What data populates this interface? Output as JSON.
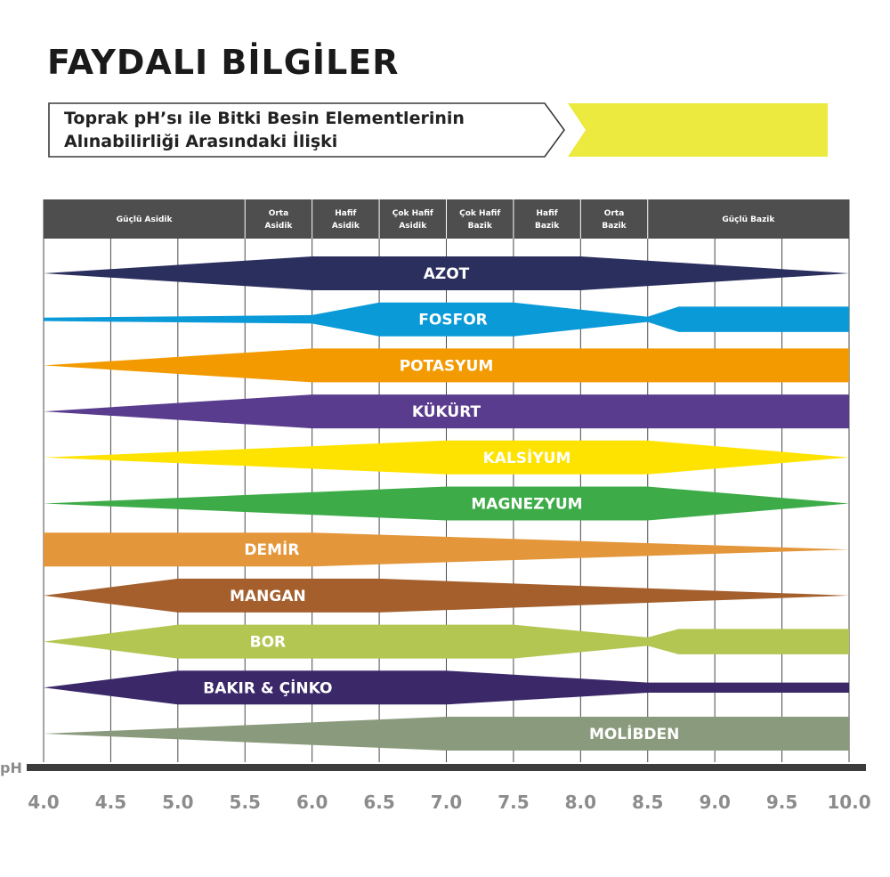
{
  "header": {
    "title": "FAYDALI BİLGİLER",
    "subtitle_line1": "Toprak pH’sı ile Bitki Besin Elementlerinin",
    "subtitle_line2": "Alınabilirliği Arasındaki İlişki",
    "accent_color": "#ecea3f"
  },
  "chart_data": {
    "type": "area",
    "title": "Toprak pH’sı ile Bitki Besin Elementlerinin Alınabilirliği Arasındaki İlişki",
    "xlabel": "pH",
    "xlim": [
      4.0,
      10.0
    ],
    "xticks": [
      4.0,
      4.5,
      5.0,
      5.5,
      6.0,
      6.5,
      7.0,
      7.5,
      8.0,
      8.5,
      9.0,
      9.5,
      10.0
    ],
    "xtick_labels": [
      "4.0",
      "4.5",
      "5.0",
      "5.5",
      "6.0",
      "6.5",
      "7.0",
      "7.5",
      "8.0",
      "8.5",
      "9.0",
      "9.5",
      "10.0"
    ],
    "value_scale": "relative availability, 0 = none, 1 = maximum",
    "grid": true,
    "zones": [
      {
        "label": [
          "Güçlü Asidik"
        ],
        "from": 4.0,
        "to": 5.5
      },
      {
        "label": [
          "Orta",
          "Asidik"
        ],
        "from": 5.5,
        "to": 6.0
      },
      {
        "label": [
          "Hafif",
          "Asidik"
        ],
        "from": 6.0,
        "to": 6.5
      },
      {
        "label": [
          "Çok Hafif",
          "Asidik"
        ],
        "from": 6.5,
        "to": 7.0
      },
      {
        "label": [
          "Çok Hafif",
          "Bazik"
        ],
        "from": 7.0,
        "to": 7.5
      },
      {
        "label": [
          "Hafif",
          "Bazik"
        ],
        "from": 7.5,
        "to": 8.0
      },
      {
        "label": [
          "Orta",
          "Bazik"
        ],
        "from": 8.0,
        "to": 8.5
      },
      {
        "label": [
          "Güçlü Bazik"
        ],
        "from": 8.5,
        "to": 10.0
      }
    ],
    "series": [
      {
        "name": "AZOT",
        "color": "#2b2f5e",
        "label_x": 7.0,
        "points": [
          [
            4.0,
            0.0
          ],
          [
            6.0,
            1.0
          ],
          [
            8.0,
            1.0
          ],
          [
            10.0,
            0.0
          ]
        ]
      },
      {
        "name": "FOSFOR",
        "color": "#0a9ad8",
        "label_x": 7.05,
        "points": [
          [
            4.0,
            0.1
          ],
          [
            6.0,
            0.25
          ],
          [
            6.5,
            1.0
          ],
          [
            7.5,
            1.0
          ],
          [
            8.5,
            0.15
          ],
          [
            8.73,
            0.75
          ],
          [
            10.0,
            0.75
          ]
        ]
      },
      {
        "name": "POTASYUM",
        "color": "#f29a00",
        "label_x": 7.0,
        "points": [
          [
            4.0,
            0.0
          ],
          [
            6.0,
            1.0
          ],
          [
            10.0,
            1.0
          ]
        ]
      },
      {
        "name": "KÜKÜRT",
        "color": "#5a3c8e",
        "label_x": 7.0,
        "points": [
          [
            4.0,
            0.0
          ],
          [
            6.0,
            1.0
          ],
          [
            10.0,
            1.0
          ]
        ]
      },
      {
        "name": "KALSİYUM",
        "color": "#ffe300",
        "label_x": 7.6,
        "points": [
          [
            4.0,
            0.0
          ],
          [
            7.0,
            1.0
          ],
          [
            8.5,
            1.0
          ],
          [
            10.0,
            0.0
          ]
        ]
      },
      {
        "name": "MAGNEZYUM",
        "color": "#3dac48",
        "label_x": 7.6,
        "points": [
          [
            4.0,
            0.0
          ],
          [
            7.0,
            1.0
          ],
          [
            8.5,
            1.0
          ],
          [
            10.0,
            0.0
          ]
        ]
      },
      {
        "name": "DEMİR",
        "color": "#e4963a",
        "label_x": 5.7,
        "points": [
          [
            4.0,
            1.0
          ],
          [
            6.0,
            1.0
          ],
          [
            10.0,
            0.0
          ]
        ]
      },
      {
        "name": "MANGAN",
        "color": "#a45f2d",
        "label_x": 5.67,
        "points": [
          [
            4.0,
            0.0
          ],
          [
            5.0,
            1.0
          ],
          [
            6.5,
            1.0
          ],
          [
            10.0,
            0.0
          ]
        ]
      },
      {
        "name": "BOR",
        "color": "#b3c652",
        "label_x": 5.67,
        "points": [
          [
            4.0,
            0.0
          ],
          [
            5.0,
            1.0
          ],
          [
            7.5,
            1.0
          ],
          [
            8.5,
            0.25
          ],
          [
            8.73,
            0.75
          ],
          [
            10.0,
            0.75
          ]
        ]
      },
      {
        "name": "BAKIR & ÇİNKO",
        "color": "#3b2869",
        "label_x": 5.67,
        "points": [
          [
            4.0,
            0.0
          ],
          [
            5.0,
            1.0
          ],
          [
            7.0,
            1.0
          ],
          [
            8.5,
            0.3
          ],
          [
            10.0,
            0.3
          ]
        ]
      },
      {
        "name": "MOLİBDEN",
        "color": "#8a9a7c",
        "label_x": 8.4,
        "points": [
          [
            4.0,
            0.0
          ],
          [
            7.0,
            1.0
          ],
          [
            10.0,
            1.0
          ]
        ]
      }
    ]
  }
}
